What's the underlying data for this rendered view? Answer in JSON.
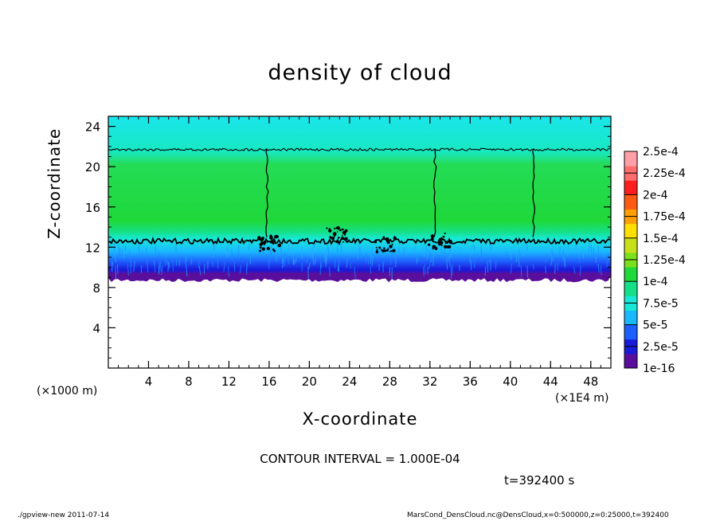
{
  "chart_data": {
    "type": "heatmap",
    "title": "density of cloud",
    "xlabel": "X-coordinate",
    "ylabel": "Z-coordinate",
    "x_unit_left": "(×1000 m)",
    "x_unit_right": "(×1E4 m)",
    "xlim": [
      0,
      50
    ],
    "ylim": [
      0,
      25
    ],
    "x_ticks": [
      4,
      8,
      12,
      16,
      20,
      24,
      28,
      32,
      36,
      40,
      44,
      48
    ],
    "x_tick_labels": [
      "4",
      "8",
      "12",
      "16",
      "20",
      "24",
      "28",
      "32",
      "36",
      "40",
      "44",
      "48"
    ],
    "y_ticks": [
      4,
      8,
      12,
      16,
      20,
      24
    ],
    "y_tick_labels": [
      "4",
      "8",
      "12",
      "16",
      "20",
      "24"
    ],
    "colorbar": {
      "labels": [
        "1e-16",
        "2.5e-5",
        "5e-5",
        "7.5e-5",
        "1e-4",
        "1.25e-4",
        "1.5e-4",
        "1.75e-4",
        "2e-4",
        "2.25e-4",
        "2.5e-4"
      ],
      "colors": [
        "#5a0f9c",
        "#1a1ad8",
        "#1e5fff",
        "#19b8ff",
        "#18e8d8",
        "#14e08a",
        "#1fd83a",
        "#7be01a",
        "#c8e01a",
        "#ffe000",
        "#ffa000",
        "#ff5a14",
        "#ff1e1e",
        "#ff6e6e",
        "#ffa0a8"
      ]
    },
    "cloud_layer": {
      "base_z": 9,
      "top_z": 25,
      "contour_levels_z": [
        12.6,
        21.7
      ]
    },
    "contour_interval": "CONTOUR INTERVAL = 1.000E-04",
    "time": "t=392400 s"
  },
  "footer": {
    "left": "./gpview-new   2011-07-14",
    "right": "MarsCond_DensCloud.nc@DensCloud,x=0:500000,z=0:25000,t=392400"
  }
}
